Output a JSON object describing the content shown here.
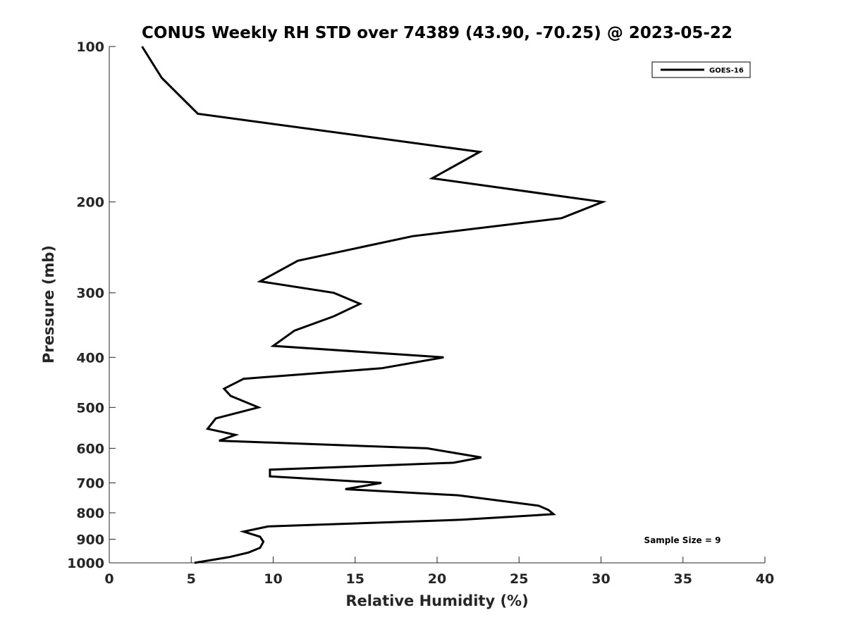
{
  "chart_data": {
    "type": "line",
    "title": "CONUS Weekly RH STD over 74389 (43.90, -70.25) @ 2023-05-22",
    "xlabel": "Relative Humidity (%)",
    "ylabel": "Pressure (mb)",
    "xlim": [
      0,
      40
    ],
    "ylim": [
      100,
      1000
    ],
    "y_scale": "log",
    "y_reversed": true,
    "x_ticks": [
      "0",
      "5",
      "10",
      "15",
      "20",
      "25",
      "30",
      "35",
      "40"
    ],
    "y_ticks": [
      "100",
      "200",
      "300",
      "400",
      "500",
      "600",
      "700",
      "800",
      "900",
      "1000"
    ],
    "grid": false,
    "legend": "top-right",
    "annotation": "Sample Size = 9",
    "series": [
      {
        "name": "GOES-16",
        "color": "#000000",
        "points": [
          [
            2.0,
            100
          ],
          [
            3.2,
            115
          ],
          [
            5.4,
            135
          ],
          [
            22.6,
            160
          ],
          [
            19.7,
            180
          ],
          [
            30.1,
            200
          ],
          [
            27.6,
            215
          ],
          [
            18.5,
            233
          ],
          [
            11.5,
            260
          ],
          [
            9.2,
            285
          ],
          [
            13.7,
            300
          ],
          [
            15.3,
            315
          ],
          [
            13.7,
            333
          ],
          [
            11.3,
            355
          ],
          [
            10.0,
            380
          ],
          [
            20.4,
            400
          ],
          [
            16.6,
            420
          ],
          [
            8.2,
            440
          ],
          [
            7.0,
            460
          ],
          [
            7.4,
            475
          ],
          [
            9.1,
            500
          ],
          [
            6.5,
            525
          ],
          [
            6.0,
            550
          ],
          [
            7.7,
            565
          ],
          [
            6.7,
            580
          ],
          [
            19.4,
            600
          ],
          [
            22.7,
            625
          ],
          [
            21.0,
            640
          ],
          [
            9.8,
            660
          ],
          [
            9.8,
            680
          ],
          [
            16.6,
            700
          ],
          [
            14.4,
            720
          ],
          [
            21.3,
            740
          ],
          [
            26.2,
            775
          ],
          [
            26.8,
            790
          ],
          [
            27.1,
            805
          ],
          [
            21.5,
            825
          ],
          [
            9.7,
            850
          ],
          [
            8.2,
            870
          ],
          [
            9.2,
            890
          ],
          [
            9.4,
            910
          ],
          [
            9.2,
            935
          ],
          [
            8.5,
            955
          ],
          [
            7.3,
            975
          ],
          [
            5.2,
            1000
          ]
        ]
      }
    ]
  }
}
